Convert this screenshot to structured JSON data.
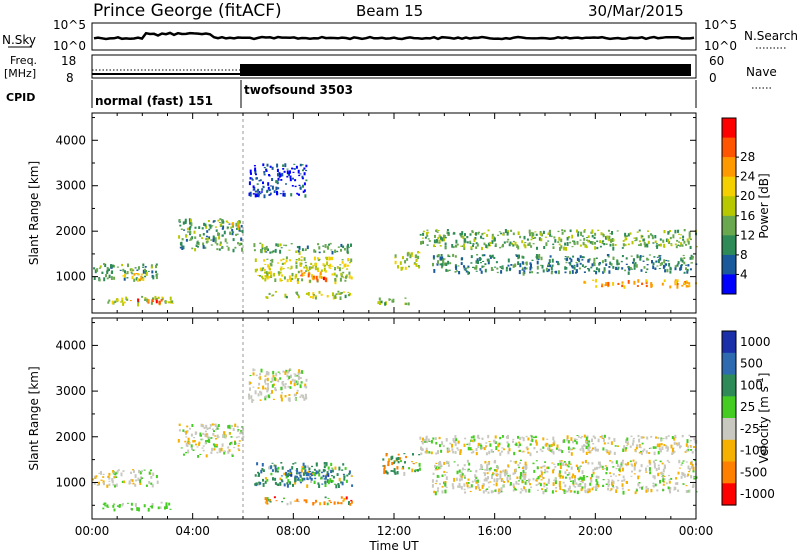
{
  "header": {
    "station": "Prince George (fitACF)",
    "beam": "Beam 15",
    "date": "30/Mar/2015"
  },
  "strips": {
    "nsky": {
      "label": "N.Sky",
      "ticks": [
        "10^5",
        "10^0"
      ]
    },
    "nsearch": {
      "label": "N.Search",
      "ticks": [
        "10^5",
        "10^0"
      ]
    },
    "freq": {
      "label_line1": "Freq.",
      "label_line2": "[MHz]",
      "ticks": [
        "18",
        "8"
      ]
    },
    "nave": {
      "label": "Nave",
      "ticks": [
        "60",
        "0"
      ]
    },
    "cpid": {
      "label": "CPID",
      "segments": [
        {
          "name": "normal (fast) 151",
          "start_hour": 0,
          "end_hour": 6
        },
        {
          "name": "twofsound 3503",
          "start_hour": 6,
          "end_hour": 24
        }
      ]
    }
  },
  "chart_data": [
    {
      "type": "heatmap",
      "title": "Power",
      "ylabel": "Slant Range [km]",
      "xlabel": "",
      "xlim_hours": [
        0,
        24
      ],
      "ylim": [
        200,
        4600
      ],
      "yticks": [
        1000,
        2000,
        3000,
        4000
      ],
      "colorbar": {
        "label": "Power [dB]",
        "ticks": [
          4,
          8,
          12,
          16,
          20,
          24,
          28
        ],
        "colors": [
          "#0000ff",
          "#1a5a9a",
          "#2e8b57",
          "#6aa84f",
          "#b8c800",
          "#f5d000",
          "#ff9900",
          "#ff5500",
          "#ff0000"
        ]
      },
      "echo_regions": [
        {
          "t": [
            0.0,
            2.6
          ],
          "r": [
            950,
            1300
          ],
          "v": 12
        },
        {
          "t": [
            1.2,
            2.2
          ],
          "r": [
            950,
            1080
          ],
          "v": 22
        },
        {
          "t": [
            0.4,
            3.2
          ],
          "r": [
            420,
            580
          ],
          "v": 16
        },
        {
          "t": [
            1.5,
            2.8
          ],
          "r": [
            450,
            520
          ],
          "v": 28
        },
        {
          "t": [
            3.4,
            6.0
          ],
          "r": [
            1600,
            2300
          ],
          "v": 12
        },
        {
          "t": [
            5.0,
            5.8
          ],
          "r": [
            2100,
            2250
          ],
          "v": 20
        },
        {
          "t": [
            6.4,
            10.3
          ],
          "r": [
            900,
            1450
          ],
          "v": 18
        },
        {
          "t": [
            8.2,
            9.6
          ],
          "r": [
            950,
            1150
          ],
          "v": 28
        },
        {
          "t": [
            6.4,
            10.3
          ],
          "r": [
            1550,
            1750
          ],
          "v": 12
        },
        {
          "t": [
            6.8,
            10.3
          ],
          "r": [
            550,
            700
          ],
          "v": 16
        },
        {
          "t": [
            11.3,
            12.6
          ],
          "r": [
            420,
            560
          ],
          "v": 14
        },
        {
          "t": [
            12.0,
            13.0
          ],
          "r": [
            1200,
            1600
          ],
          "v": 18
        },
        {
          "t": [
            13.0,
            24.0
          ],
          "r": [
            1650,
            2050
          ],
          "v": 14
        },
        {
          "t": [
            13.5,
            24.0
          ],
          "r": [
            1100,
            1500
          ],
          "v": 10
        },
        {
          "t": [
            19.5,
            24.0
          ],
          "r": [
            800,
            950
          ],
          "v": 26
        },
        {
          "t": [
            6.2,
            8.5
          ],
          "r": [
            2800,
            3500
          ],
          "v": 4
        }
      ]
    },
    {
      "type": "heatmap",
      "title": "Velocity",
      "ylabel": "Slant Range [km]",
      "xlabel": "Time UT",
      "xlim_hours": [
        0,
        24
      ],
      "ylim": [
        200,
        4600
      ],
      "yticks": [
        1000,
        2000,
        3000,
        4000
      ],
      "xticks": [
        "00:00",
        "04:00",
        "08:00",
        "12:00",
        "16:00",
        "20:00",
        "00:00"
      ],
      "colorbar": {
        "label": "Velocity [m s^-1]",
        "ticks": [
          1000,
          500,
          100,
          25,
          -25,
          -100,
          -500,
          -1000
        ],
        "colors": [
          "#1b2fa8",
          "#2d6ab0",
          "#2e8b57",
          "#44cc22",
          "#c8c8c0",
          "#f5b000",
          "#ff7f00",
          "#ff0000"
        ]
      },
      "echo_regions": [
        {
          "t": [
            0.0,
            2.6
          ],
          "r": [
            950,
            1300
          ],
          "v": 0
        },
        {
          "t": [
            0.4,
            3.2
          ],
          "r": [
            420,
            580
          ],
          "v": 60
        },
        {
          "t": [
            3.4,
            6.0
          ],
          "r": [
            1600,
            2300
          ],
          "v": 0
        },
        {
          "t": [
            6.4,
            10.3
          ],
          "r": [
            950,
            1450
          ],
          "v": 250
        },
        {
          "t": [
            7.5,
            9.5
          ],
          "r": [
            1100,
            1300
          ],
          "v": 700
        },
        {
          "t": [
            6.8,
            10.3
          ],
          "r": [
            550,
            700
          ],
          "v": -200
        },
        {
          "t": [
            11.5,
            13.0
          ],
          "r": [
            1200,
            1650
          ],
          "v": 150
        },
        {
          "t": [
            13.0,
            24.0
          ],
          "r": [
            1650,
            2050
          ],
          "v": 0
        },
        {
          "t": [
            13.5,
            24.0
          ],
          "r": [
            800,
            1500
          ],
          "v": 0
        },
        {
          "t": [
            6.2,
            8.5
          ],
          "r": [
            2800,
            3500
          ],
          "v": 0
        }
      ]
    }
  ]
}
